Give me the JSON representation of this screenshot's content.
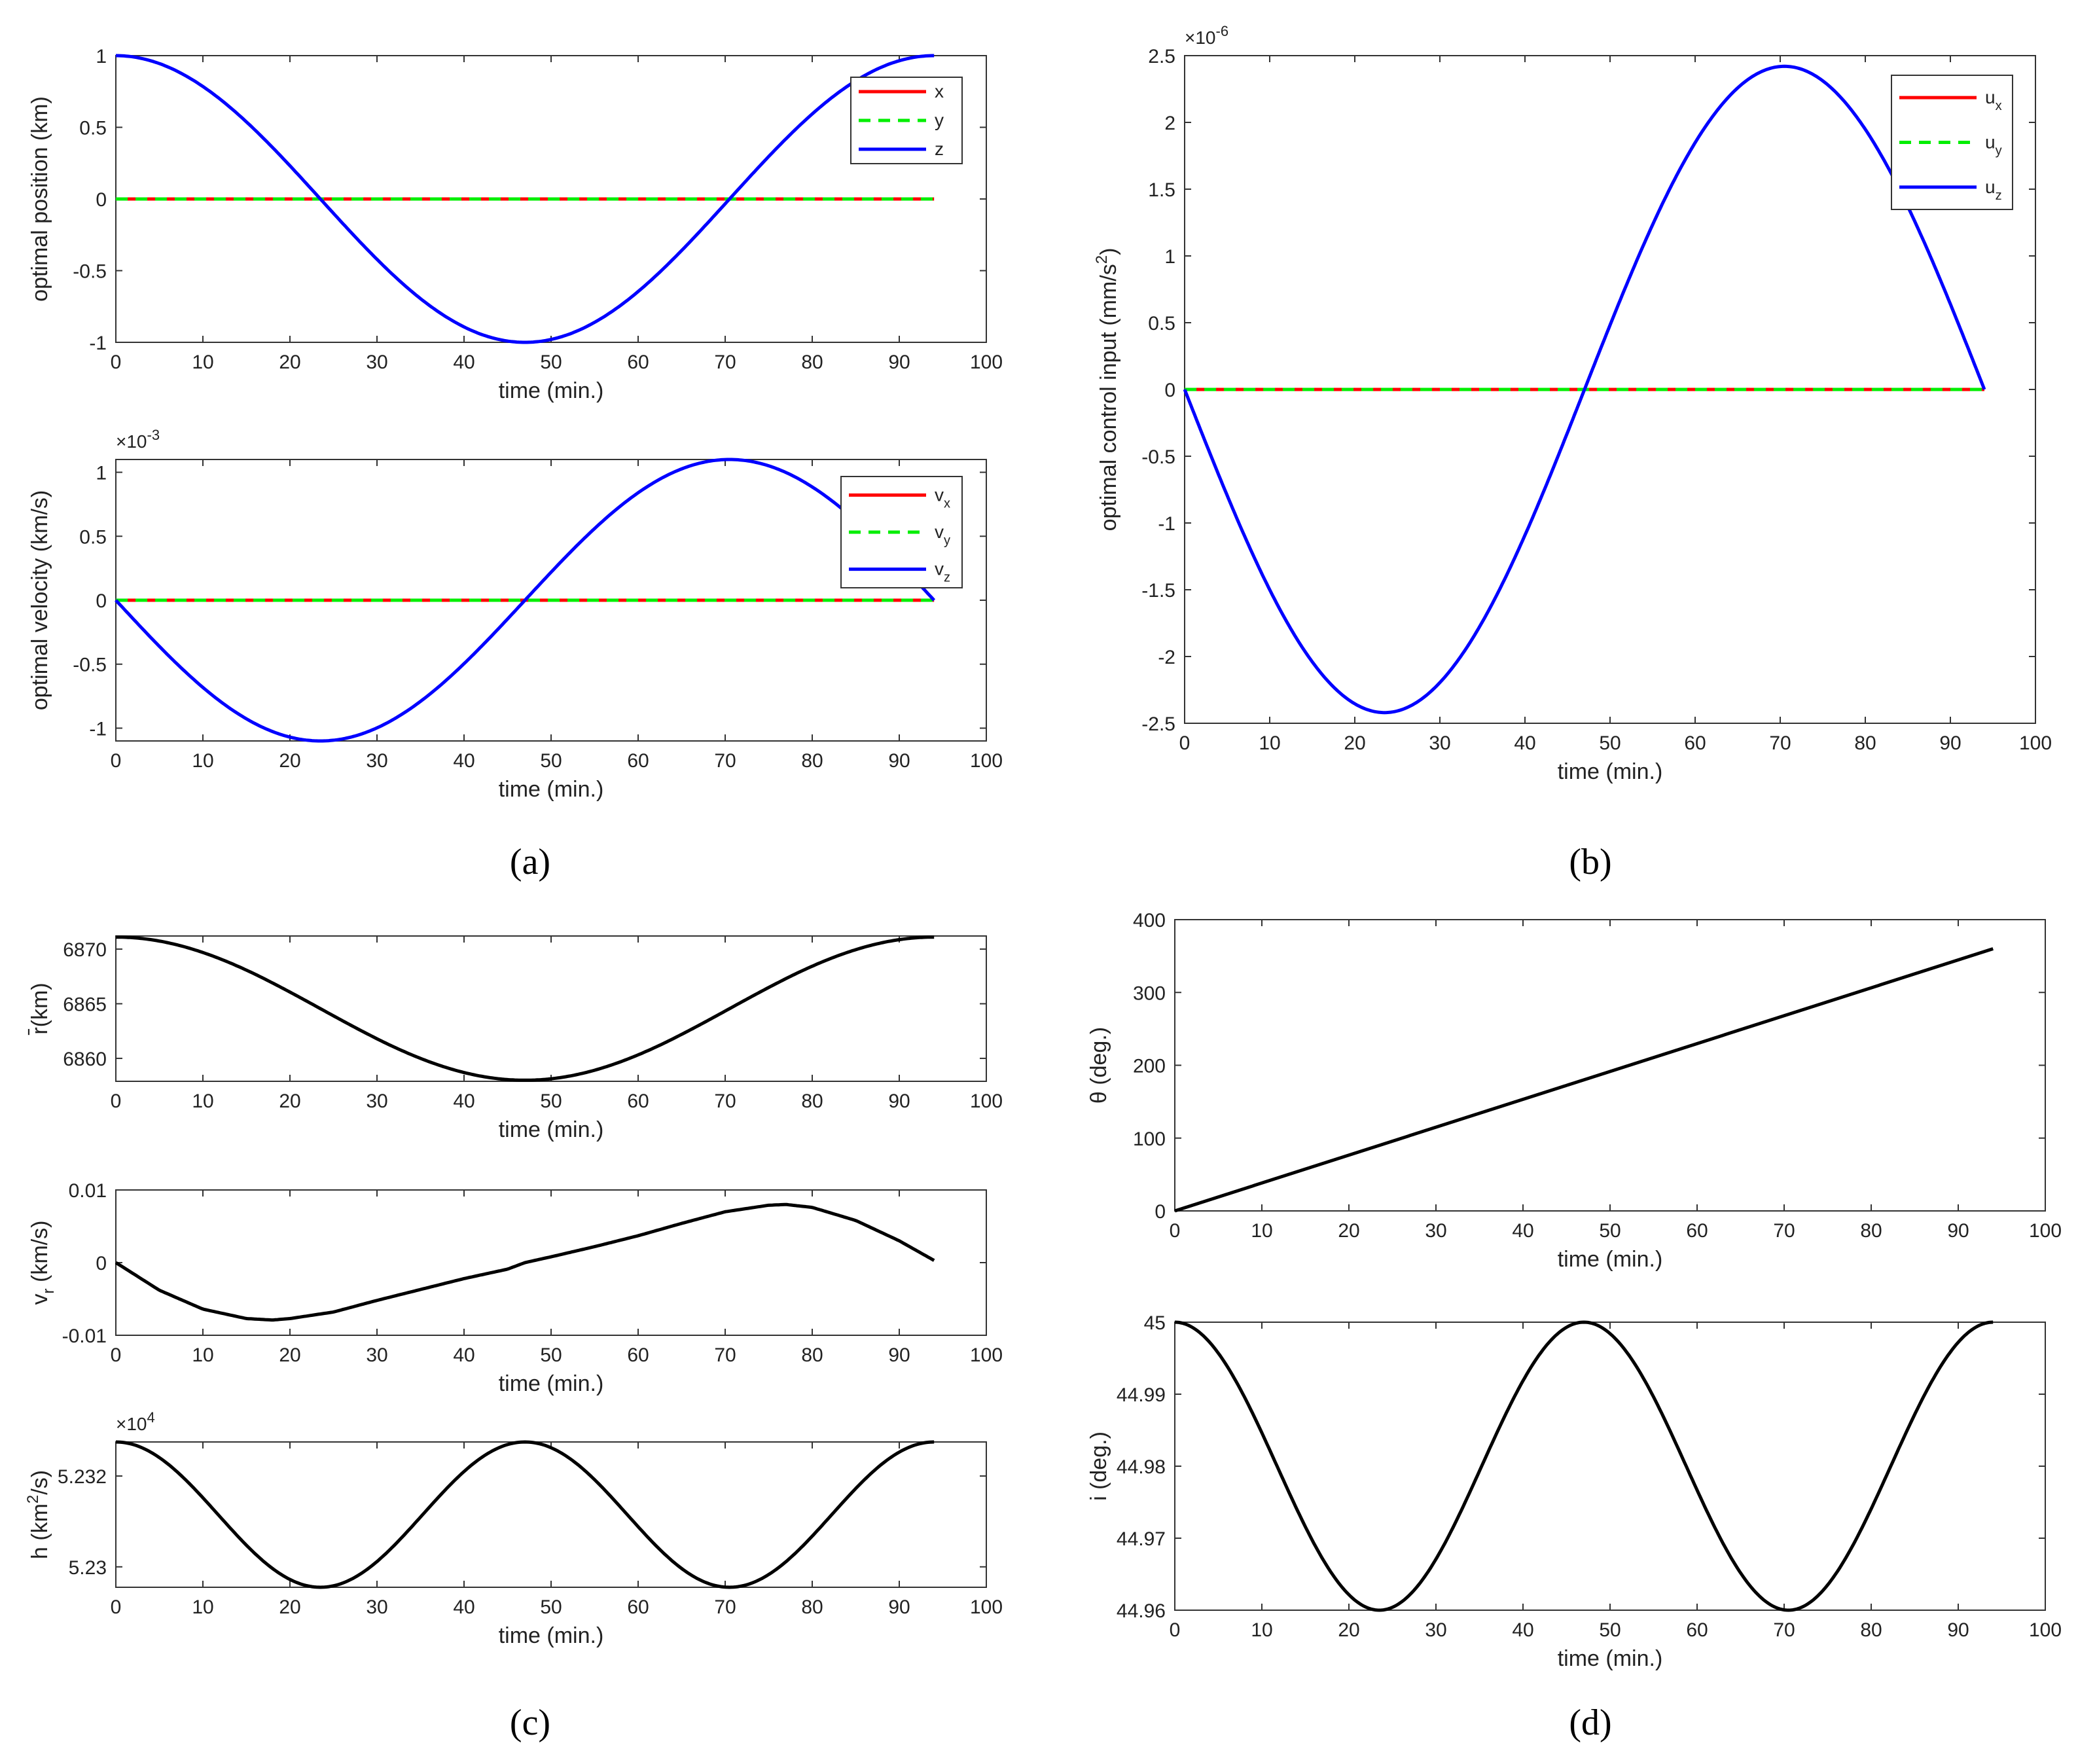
{
  "captions": {
    "a": "(a)",
    "b": "(b)",
    "c": "(c)",
    "d": "(d)"
  },
  "colors": {
    "x": "#ff0000",
    "y": "#00ee00",
    "z": "#0000ff",
    "black": "#000000"
  },
  "chart_data": [
    {
      "id": "a1",
      "type": "line",
      "xlabel": "time (min.)",
      "ylabel": "optimal position (km)",
      "xlim": [
        0,
        100
      ],
      "ylim": [
        -1,
        1
      ],
      "xticks": [
        0,
        10,
        20,
        30,
        40,
        50,
        60,
        70,
        80,
        90,
        100
      ],
      "yticks": [
        -1,
        -0.5,
        0,
        0.5,
        1
      ],
      "ytick_labels": [
        "-1",
        "-0.5",
        "0",
        "0.5",
        "1"
      ],
      "legend_position": "top-right",
      "series": [
        {
          "name": "x",
          "func": "zero",
          "color": "#ff0000",
          "style": "solid"
        },
        {
          "name": "y",
          "func": "zero",
          "color": "#00ee00",
          "style": "dashed"
        },
        {
          "name": "z",
          "func": "cos",
          "amplitude": 1,
          "period_min": 94,
          "color": "#0000ff",
          "style": "solid"
        }
      ],
      "x_end": 94
    },
    {
      "id": "a2",
      "type": "line",
      "xlabel": "time (min.)",
      "ylabel": "optimal velocity (km/s)",
      "multiplier": "×10",
      "multiplier_exp": "-3",
      "xlim": [
        0,
        100
      ],
      "ylim": [
        -1.1,
        1.1
      ],
      "xticks": [
        0,
        10,
        20,
        30,
        40,
        50,
        60,
        70,
        80,
        90,
        100
      ],
      "yticks": [
        -1,
        -0.5,
        0,
        0.5,
        1
      ],
      "ytick_labels": [
        "-1",
        "-0.5",
        "0",
        "0.5",
        "1"
      ],
      "legend_position": "top-right",
      "series": [
        {
          "name": "v",
          "sub": "x",
          "func": "zero",
          "color": "#ff0000",
          "style": "solid"
        },
        {
          "name": "v",
          "sub": "y",
          "func": "zero",
          "color": "#00ee00",
          "style": "dashed"
        },
        {
          "name": "v",
          "sub": "z",
          "func": "negsin",
          "amplitude": 1.1,
          "period_min": 94,
          "color": "#0000ff",
          "style": "solid"
        }
      ],
      "x_end": 94
    },
    {
      "id": "b",
      "type": "line",
      "xlabel": "time (min.)",
      "ylabel": "optimal control input (mm/s",
      "ylabel_sup": "2",
      "ylabel_end": ")",
      "multiplier": "×10",
      "multiplier_exp": "-6",
      "xlim": [
        0,
        100
      ],
      "ylim": [
        -2.5,
        2.5
      ],
      "xticks": [
        0,
        10,
        20,
        30,
        40,
        50,
        60,
        70,
        80,
        90,
        100
      ],
      "yticks": [
        -2.5,
        -2,
        -1.5,
        -1,
        -0.5,
        0,
        0.5,
        1,
        1.5,
        2,
        2.5
      ],
      "ytick_labels": [
        "-2.5",
        "-2",
        "-1.5",
        "-1",
        "-0.5",
        "0",
        "0.5",
        "1",
        "1.5",
        "2",
        "2.5"
      ],
      "legend_position": "top-right",
      "series": [
        {
          "name": "u",
          "sub": "x",
          "func": "zero",
          "color": "#ff0000",
          "style": "solid"
        },
        {
          "name": "u",
          "sub": "y",
          "func": "zero",
          "color": "#00ee00",
          "style": "dashed"
        },
        {
          "name": "u",
          "sub": "z",
          "func": "negsin",
          "amplitude": 2.42,
          "period_min": 94,
          "color": "#0000ff",
          "style": "solid"
        }
      ],
      "x_end": 94
    },
    {
      "id": "c1",
      "type": "line",
      "xlabel": "time (min.)",
      "ylabel": "r̄(km)",
      "xlim": [
        0,
        100
      ],
      "ylim": [
        6857.9,
        6871.2
      ],
      "xticks": [
        0,
        10,
        20,
        30,
        40,
        50,
        60,
        70,
        80,
        90,
        100
      ],
      "yticks": [
        6860,
        6865,
        6870
      ],
      "ytick_labels": [
        "6860",
        "6865",
        "6870"
      ],
      "series": [
        {
          "name": "r",
          "func": "cos_offset",
          "center": 6864.55,
          "amplitude": 6.55,
          "period_min": 94,
          "color": "#000000",
          "style": "solid"
        }
      ],
      "x_end": 94
    },
    {
      "id": "c2",
      "type": "line",
      "xlabel": "time (min.)",
      "ylabel": "v",
      "ylabel_sub": "r",
      "ylabel_end": " (km/s)",
      "xlim": [
        0,
        100
      ],
      "ylim": [
        -0.01,
        0.01
      ],
      "xticks": [
        0,
        10,
        20,
        30,
        40,
        50,
        60,
        70,
        80,
        90,
        100
      ],
      "yticks": [
        -0.01,
        0,
        0.01
      ],
      "ytick_labels": [
        "-0.01",
        "0",
        "0.01"
      ],
      "series": [
        {
          "name": "vr",
          "func": "points",
          "color": "#000000",
          "style": "solid",
          "x": [
            0,
            5,
            10,
            15,
            18,
            20,
            25,
            30,
            35,
            40,
            45,
            47,
            50,
            55,
            60,
            65,
            70,
            75,
            77,
            80,
            85,
            90,
            94
          ],
          "y": [
            0,
            -0.0038,
            -0.0064,
            -0.0077,
            -0.0079,
            -0.0077,
            -0.0068,
            -0.0052,
            -0.0037,
            -0.0022,
            -0.0009,
            0,
            0.0008,
            0.0022,
            0.0037,
            0.0054,
            0.007,
            0.0079,
            0.008,
            0.0076,
            0.0058,
            0.003,
            0.0003
          ]
        }
      ],
      "x_end": 94
    },
    {
      "id": "c3",
      "type": "line",
      "xlabel": "time (min.)",
      "ylabel": "h (km",
      "ylabel_sup": "2",
      "ylabel_end": "/s)",
      "multiplier": "×10",
      "multiplier_exp": "4",
      "xlim": [
        0,
        100
      ],
      "ylim": [
        5.22955,
        5.23275
      ],
      "xticks": [
        0,
        10,
        20,
        30,
        40,
        50,
        60,
        70,
        80,
        90,
        100
      ],
      "yticks": [
        5.23,
        5.232
      ],
      "ytick_labels": [
        "5.23",
        "5.232"
      ],
      "series": [
        {
          "name": "h",
          "func": "cos_offset2",
          "center": 5.23115,
          "amplitude": 0.0016,
          "period_min": 47,
          "color": "#000000",
          "style": "solid"
        }
      ],
      "x_end": 94
    },
    {
      "id": "d1",
      "type": "line",
      "xlabel": "time (min.)",
      "ylabel": "θ (deg.)",
      "xlim": [
        0,
        100
      ],
      "ylim": [
        0,
        400
      ],
      "xticks": [
        0,
        10,
        20,
        30,
        40,
        50,
        60,
        70,
        80,
        90,
        100
      ],
      "yticks": [
        0,
        100,
        200,
        300,
        400
      ],
      "ytick_labels": [
        "0",
        "100",
        "200",
        "300",
        "400"
      ],
      "series": [
        {
          "name": "theta",
          "func": "linear",
          "slope": 3.83,
          "color": "#000000",
          "style": "solid"
        }
      ],
      "x_end": 94
    },
    {
      "id": "d2",
      "type": "line",
      "xlabel": "time (min.)",
      "ylabel": "i (deg.)",
      "xlim": [
        0,
        100
      ],
      "ylim": [
        44.96,
        45.0
      ],
      "xticks": [
        0,
        10,
        20,
        30,
        40,
        50,
        60,
        70,
        80,
        90,
        100
      ],
      "yticks": [
        44.96,
        44.97,
        44.98,
        44.99,
        45
      ],
      "ytick_labels": [
        "44.96",
        "44.97",
        "44.98",
        "44.99",
        "45"
      ],
      "series": [
        {
          "name": "i",
          "func": "cos_offset2",
          "center": 44.98,
          "amplitude": 0.02,
          "period_min": 47,
          "color": "#000000",
          "style": "solid"
        }
      ],
      "x_end": 94
    }
  ]
}
